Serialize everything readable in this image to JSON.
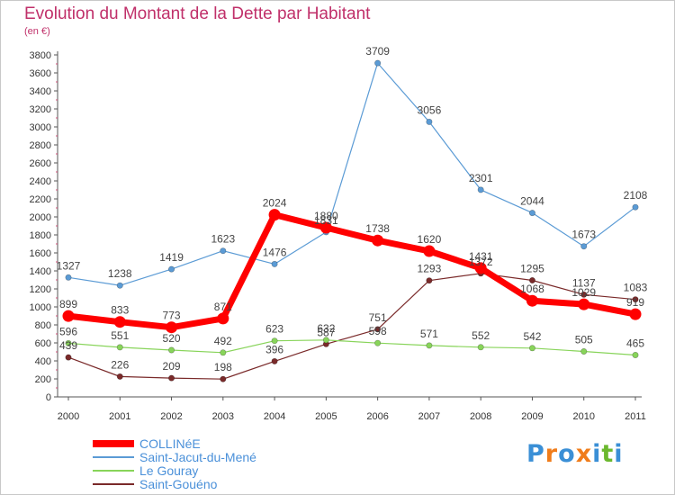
{
  "chart_data": {
    "type": "line",
    "title": "Evolution du Montant de la Dette par Habitant",
    "subtitle": "(en €)",
    "x": [
      "2000",
      "2001",
      "2002",
      "2003",
      "2004",
      "2005",
      "2006",
      "2007",
      "2008",
      "2009",
      "2010",
      "2011"
    ],
    "ylim": [
      0,
      3800
    ],
    "ytick_step": 200,
    "grid": false,
    "legend_position": "bottom-left",
    "series": [
      {
        "name": "COLLINéE",
        "color": "#ff0000",
        "values": [
          899,
          833,
          773,
          871,
          2024,
          1880,
          1738,
          1620,
          1431,
          1068,
          1029,
          919
        ]
      },
      {
        "name": "Saint-Jacut-du-Mené",
        "color": "#5b9bd5",
        "values": [
          1327,
          1238,
          1419,
          1623,
          1476,
          1831,
          3709,
          3056,
          2301,
          2044,
          1673,
          2108
        ]
      },
      {
        "name": "Le Gouray",
        "color": "#88d45a",
        "values": [
          596,
          551,
          520,
          492,
          623,
          632,
          598,
          571,
          552,
          542,
          505,
          465
        ]
      },
      {
        "name": "Saint-Gouéno",
        "color": "#7a2a2a",
        "values": [
          439,
          226,
          209,
          198,
          396,
          587,
          751,
          1293,
          1372,
          1295,
          1137,
          1083
        ]
      }
    ]
  },
  "brand": {
    "text": "Proxiti",
    "colors": [
      "#3a8fd6",
      "#f07c1a",
      "#3a8fd6",
      "#f07c1a",
      "#3a8fd6",
      "#6bb82e",
      "#3a8fd6"
    ]
  }
}
